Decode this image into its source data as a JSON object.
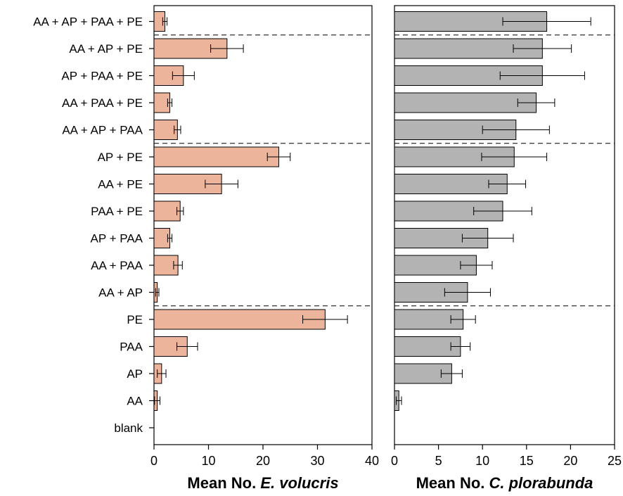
{
  "chart_data": {
    "type": "bar",
    "orientation": "horizontal",
    "categories": [
      "AA + AP + PAA + PE",
      "AA + AP + PE",
      "AP + PAA + PE",
      "AA + PAA + PE",
      "AA + AP + PAA",
      "AP + PE",
      "AA + PE",
      "PAA + PE",
      "AP + PAA",
      "AA + PAA",
      "AA + AP",
      "PE",
      "PAA",
      "AP",
      "AA",
      "blank"
    ],
    "group_separators_after": [
      0,
      4,
      10
    ],
    "panels": [
      {
        "xlabel_prefix": "Mean No.",
        "xlabel_species": "E. volucris",
        "xlim": [
          0,
          40
        ],
        "ticks": [
          0,
          10,
          20,
          30,
          40
        ],
        "bar_color": "#ebb49b",
        "values": [
          2.0,
          13.4,
          5.4,
          2.9,
          4.3,
          22.9,
          12.4,
          4.8,
          2.9,
          4.4,
          0.6,
          31.4,
          6.1,
          1.4,
          0.6,
          0
        ],
        "errors": [
          0.4,
          3.0,
          2.0,
          0.4,
          0.6,
          2.1,
          3.0,
          0.6,
          0.4,
          0.8,
          0.3,
          4.1,
          1.9,
          0.8,
          0.5,
          0
        ]
      },
      {
        "xlabel_prefix": "Mean No.",
        "xlabel_species": "C. plorabunda",
        "xlim": [
          0,
          25
        ],
        "ticks": [
          0,
          5,
          10,
          15,
          20,
          25
        ],
        "bar_color": "#b3b3b3",
        "values": [
          17.3,
          16.8,
          16.8,
          16.1,
          13.8,
          13.6,
          12.8,
          12.3,
          10.6,
          9.3,
          8.3,
          7.8,
          7.5,
          6.5,
          0.5,
          0
        ],
        "errors": [
          5.0,
          3.3,
          4.8,
          2.1,
          3.8,
          3.7,
          2.1,
          3.3,
          2.9,
          1.8,
          2.6,
          1.4,
          1.1,
          1.2,
          0.3,
          0
        ]
      }
    ]
  }
}
